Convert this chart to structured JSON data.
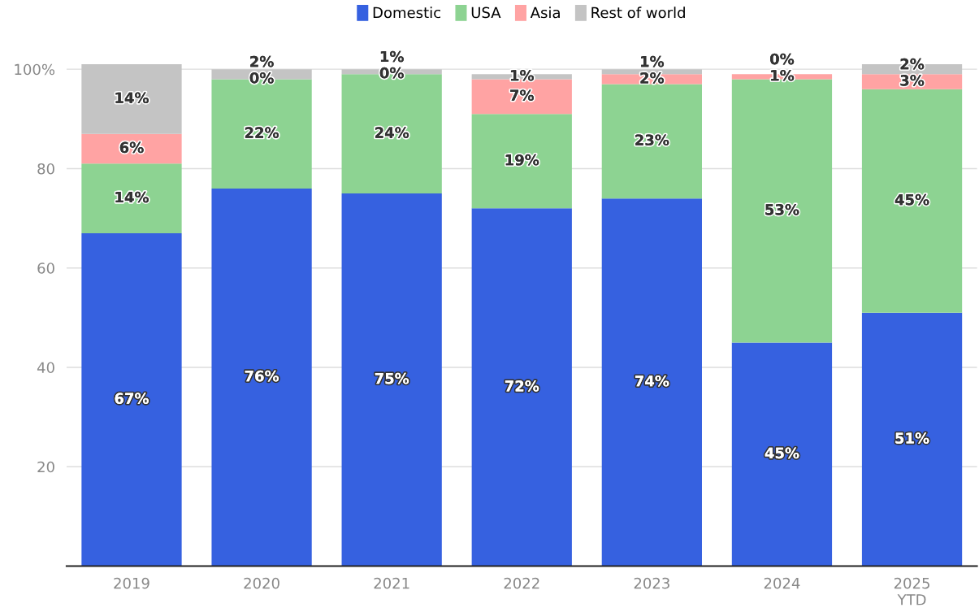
{
  "chart_data": {
    "type": "bar",
    "stacked": true,
    "grid": "y",
    "legend": "top",
    "categories": [
      "2019",
      "2020",
      "2021",
      "2022",
      "2023",
      "2024",
      "2025\nYTD"
    ],
    "series": [
      {
        "name": "Domestic",
        "color": "#3661e0",
        "values": [
          67,
          76,
          75,
          72,
          74,
          45,
          51
        ],
        "value_labels": [
          "67%",
          "76%",
          "75%",
          "72%",
          "74%",
          "45%",
          "51%"
        ]
      },
      {
        "name": "USA",
        "color": "#8dd392",
        "values": [
          14,
          22,
          24,
          19,
          23,
          53,
          45
        ],
        "value_labels": [
          "14%",
          "22%",
          "24%",
          "19%",
          "23%",
          "53%",
          "45%"
        ]
      },
      {
        "name": "Asia",
        "color": "#ffa3a3",
        "values": [
          6,
          0,
          0,
          7,
          2,
          1,
          3
        ],
        "value_labels": [
          "6%",
          "0%",
          "0%",
          "7%",
          "2%",
          "1%",
          "3%"
        ]
      },
      {
        "name": "Rest of world",
        "color": "#c4c4c4",
        "values": [
          14,
          2,
          1,
          1,
          1,
          0,
          2
        ],
        "value_labels": [
          "14%",
          "2%",
          "1%",
          "1%",
          "1%",
          "0%",
          "2%"
        ]
      }
    ],
    "ylim": [
      0,
      101
    ],
    "yticks": [
      20,
      40,
      60,
      80,
      {
        "value": 100,
        "label": "100%"
      }
    ]
  }
}
